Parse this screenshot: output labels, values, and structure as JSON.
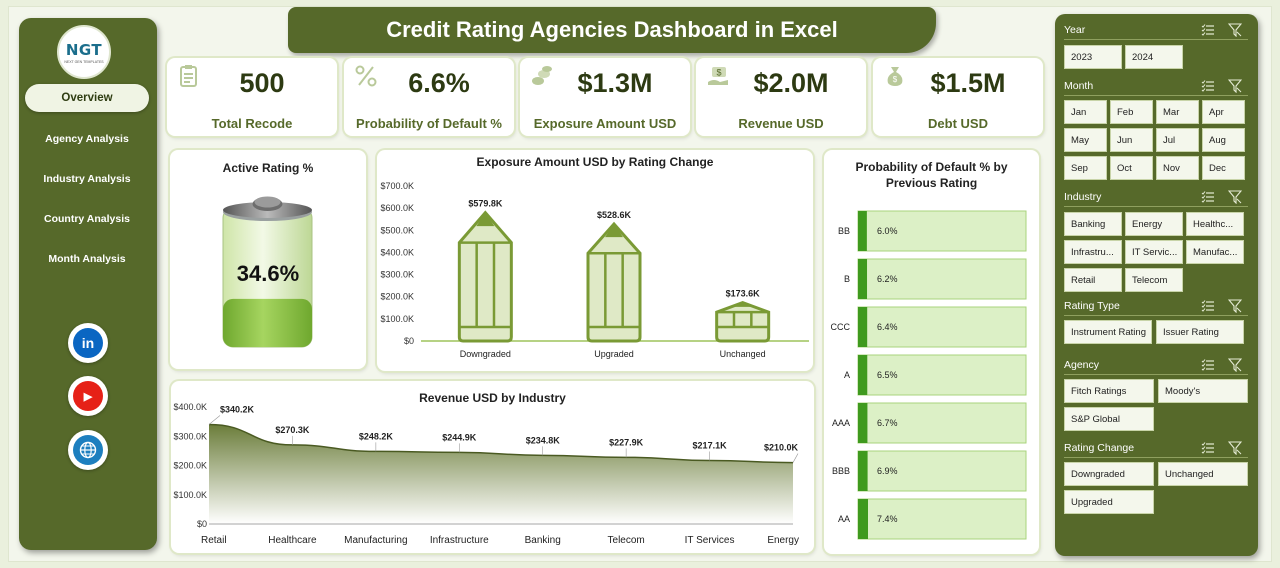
{
  "app_title": "Credit Rating Agencies Dashboard in Excel",
  "logo": {
    "text": "NGT",
    "subtext": "NEXT GEN TEMPLATES"
  },
  "sidebar": {
    "items": [
      {
        "label": "Overview",
        "active": true
      },
      {
        "label": "Agency Analysis",
        "active": false
      },
      {
        "label": "Industry Analysis",
        "active": false
      },
      {
        "label": "Country Analysis",
        "active": false
      },
      {
        "label": "Month Analysis",
        "active": false
      }
    ],
    "social": [
      {
        "name": "linkedin-icon",
        "glyph": "in",
        "color": "#0a66c2"
      },
      {
        "name": "youtube-icon",
        "glyph": "▶",
        "color": "#e62117"
      },
      {
        "name": "globe-icon",
        "glyph": "🌐",
        "color": "#1d7fbf"
      }
    ]
  },
  "kpis": [
    {
      "value": "500",
      "label": "Total Recode",
      "icon": "clipboard-icon"
    },
    {
      "value": "6.6%",
      "label": "Probability of Default %",
      "icon": "percent-icon"
    },
    {
      "value": "$1.3M",
      "label": "Exposure Amount USD",
      "icon": "coins-icon"
    },
    {
      "value": "$2.0M",
      "label": "Revenue USD",
      "icon": "dollar-hand-icon"
    },
    {
      "value": "$1.5M",
      "label": "Debt USD",
      "icon": "money-bag-icon"
    }
  ],
  "active_rating": {
    "title": "Active Rating %",
    "value_label": "34.6%",
    "fill_fraction": 0.346
  },
  "colors": {
    "accent": "#56692a",
    "fill": "#8ab83a",
    "fill_light": "#dcefc3"
  },
  "chart_data": [
    {
      "type": "bar",
      "title": "Exposure Amount USD by Rating Change",
      "categories": [
        "Downgraded",
        "Upgraded",
        "Unchanged"
      ],
      "values": [
        579.8,
        528.6,
        173.6
      ],
      "data_labels": [
        "$579.8K",
        "$528.6K",
        "$173.6K"
      ],
      "yticks": [
        "$0",
        "$100.0K",
        "$200.0K",
        "$300.0K",
        "$400.0K",
        "$500.0K",
        "$600.0K",
        "$700.0K"
      ],
      "ylim": [
        0,
        700
      ],
      "grid": false
    },
    {
      "type": "area",
      "title": "Revenue USD by Industry",
      "categories": [
        "Retail",
        "Healthcare",
        "Manufacturing",
        "Infrastructure",
        "Banking",
        "Telecom",
        "IT Services",
        "Energy"
      ],
      "values": [
        340.2,
        270.3,
        248.2,
        244.9,
        234.8,
        227.9,
        217.1,
        210.0
      ],
      "data_labels": [
        "$340.2K",
        "$270.3K",
        "$248.2K",
        "$244.9K",
        "$234.8K",
        "$227.9K",
        "$217.1K",
        "$210.0K"
      ],
      "yticks": [
        "$0",
        "$100.0K",
        "$200.0K",
        "$300.0K",
        "$400.0K"
      ],
      "ylim": [
        0,
        400
      ],
      "grid": false
    },
    {
      "type": "bar",
      "orientation": "horizontal",
      "title": "Probability of Default % by Previous Rating",
      "categories": [
        "BB",
        "B",
        "CCC",
        "A",
        "AAA",
        "BBB",
        "AA"
      ],
      "values": [
        6.0,
        6.2,
        6.4,
        6.5,
        6.7,
        6.9,
        7.4
      ],
      "data_labels": [
        "6.0%",
        "6.2%",
        "6.4%",
        "6.5%",
        "6.7%",
        "6.9%",
        "7.4%"
      ],
      "grid": false
    }
  ],
  "slicers": [
    {
      "title": "Year",
      "items": [
        "2023",
        "2024"
      ]
    },
    {
      "title": "Month",
      "items": [
        "Jan",
        "Feb",
        "Mar",
        "Apr",
        "May",
        "Jun",
        "Jul",
        "Aug",
        "Sep",
        "Oct",
        "Nov",
        "Dec"
      ]
    },
    {
      "title": "Industry",
      "items": [
        "Banking",
        "Energy",
        "Healthc...",
        "Infrastru...",
        "IT Servic...",
        "Manufac...",
        "Retail",
        "Telecom"
      ]
    },
    {
      "title": "Rating Type",
      "items": [
        "Instrument Rating",
        "Issuer Rating"
      ]
    },
    {
      "title": "Agency",
      "items": [
        "Fitch Ratings",
        "Moody's",
        "S&P Global"
      ]
    },
    {
      "title": "Rating Change",
      "items": [
        "Downgraded",
        "Unchanged",
        "Upgraded"
      ]
    }
  ]
}
